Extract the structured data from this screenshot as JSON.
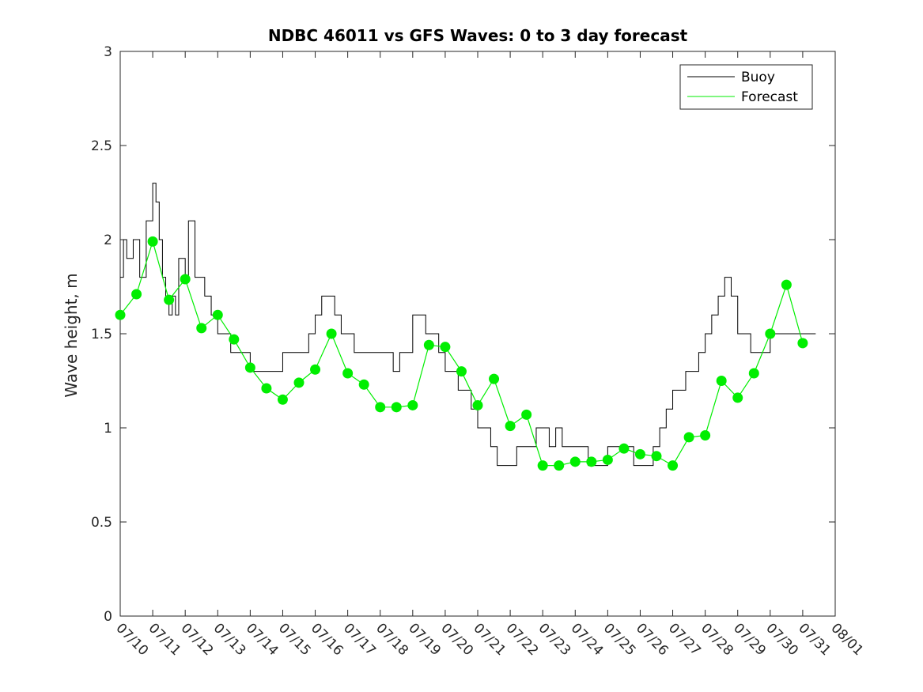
{
  "chart_data": {
    "type": "line",
    "title": "NDBC 46011 vs GFS Waves: 0 to 3 day forecast",
    "xlabel": "",
    "ylabel": "Wave height, m",
    "ylim": [
      0,
      3
    ],
    "yticks": [
      "0",
      "0.5",
      "1",
      "1.5",
      "2",
      "2.5",
      "3"
    ],
    "xlim": [
      "2023-07-10",
      "2023-08-01"
    ],
    "xticks": [
      "07/10",
      "07/11",
      "07/12",
      "07/13",
      "07/14",
      "07/15",
      "07/16",
      "07/17",
      "07/18",
      "07/19",
      "07/20",
      "07/21",
      "07/22",
      "07/23",
      "07/24",
      "07/25",
      "07/26",
      "07/27",
      "07/28",
      "07/29",
      "07/30",
      "07/31",
      "08/01"
    ],
    "grid": false,
    "legend": {
      "placement": "top-right",
      "entries": [
        "Buoy",
        "Forecast"
      ]
    },
    "colors": {
      "buoy": "#000000",
      "forecast": "#00ee00"
    },
    "series": [
      {
        "name": "Buoy",
        "style": "stepped line",
        "x_days": [
          0.0,
          0.1,
          0.2,
          0.4,
          0.6,
          0.8,
          1.0,
          1.1,
          1.2,
          1.3,
          1.4,
          1.5,
          1.6,
          1.7,
          1.8,
          2.0,
          2.1,
          2.3,
          2.5,
          2.6,
          2.8,
          3.0,
          3.2,
          3.4,
          3.6,
          3.8,
          4.0,
          4.2,
          4.4,
          4.6,
          4.8,
          5.0,
          5.2,
          5.4,
          5.6,
          5.8,
          6.0,
          6.2,
          6.4,
          6.6,
          6.8,
          7.0,
          7.2,
          7.4,
          7.6,
          7.8,
          8.0,
          8.2,
          8.4,
          8.6,
          8.8,
          9.0,
          9.2,
          9.4,
          9.6,
          9.8,
          10.0,
          10.2,
          10.4,
          10.6,
          10.8,
          11.0,
          11.2,
          11.4,
          11.6,
          11.8,
          12.0,
          12.2,
          12.4,
          12.6,
          12.8,
          13.0,
          13.2,
          13.4,
          13.6,
          13.8,
          14.0,
          14.2,
          14.4,
          14.6,
          14.8,
          15.0,
          15.2,
          15.4,
          15.6,
          15.8,
          16.0,
          16.2,
          16.4,
          16.6,
          16.8,
          17.0,
          17.2,
          17.4,
          17.6,
          17.8,
          18.0,
          18.2,
          18.4,
          18.6,
          18.8,
          19.0,
          19.2,
          19.4,
          19.6,
          19.8,
          20.0,
          20.2,
          20.4,
          20.6,
          20.8,
          21.0,
          21.2,
          21.4
        ],
        "values": [
          1.8,
          2.0,
          1.9,
          2.0,
          1.8,
          2.1,
          2.3,
          2.2,
          2.0,
          1.8,
          1.7,
          1.6,
          1.7,
          1.6,
          1.9,
          1.8,
          2.1,
          1.8,
          1.8,
          1.7,
          1.6,
          1.5,
          1.5,
          1.4,
          1.4,
          1.4,
          1.3,
          1.3,
          1.3,
          1.3,
          1.3,
          1.4,
          1.4,
          1.4,
          1.4,
          1.5,
          1.6,
          1.7,
          1.7,
          1.6,
          1.5,
          1.5,
          1.4,
          1.4,
          1.4,
          1.4,
          1.4,
          1.4,
          1.3,
          1.4,
          1.4,
          1.6,
          1.6,
          1.5,
          1.5,
          1.4,
          1.3,
          1.3,
          1.2,
          1.2,
          1.1,
          1.0,
          1.0,
          0.9,
          0.8,
          0.8,
          0.8,
          0.9,
          0.9,
          0.9,
          1.0,
          1.0,
          0.9,
          1.0,
          0.9,
          0.9,
          0.9,
          0.9,
          0.8,
          0.8,
          0.8,
          0.9,
          0.9,
          0.9,
          0.9,
          0.8,
          0.8,
          0.8,
          0.9,
          1.0,
          1.1,
          1.2,
          1.2,
          1.3,
          1.3,
          1.4,
          1.5,
          1.6,
          1.7,
          1.8,
          1.7,
          1.5,
          1.5,
          1.4,
          1.4,
          1.4,
          1.5,
          1.5,
          1.5,
          1.5,
          1.5,
          1.5,
          1.5,
          1.5
        ]
      },
      {
        "name": "Forecast",
        "style": "lines with dot markers (analysis)",
        "x_days": [
          0.0,
          0.5,
          1.0,
          1.5,
          2.0,
          2.5,
          3.0,
          3.5,
          4.0,
          4.5,
          5.0,
          5.5,
          6.0,
          6.5,
          7.0,
          7.5,
          8.0,
          8.5,
          9.0,
          9.5,
          10.0,
          10.5,
          11.0,
          11.5,
          12.0,
          12.5,
          13.0,
          13.5,
          14.0,
          14.5,
          15.0,
          15.5,
          16.0,
          16.5,
          17.0,
          17.5,
          18.0,
          18.5,
          19.0,
          19.5,
          20.0,
          20.5,
          21.0
        ],
        "values": [
          1.6,
          1.71,
          1.99,
          1.68,
          1.79,
          1.53,
          1.6,
          1.47,
          1.32,
          1.21,
          1.15,
          1.24,
          1.31,
          1.5,
          1.29,
          1.23,
          1.11,
          1.11,
          1.12,
          1.44,
          1.43,
          1.3,
          1.12,
          1.26,
          1.01,
          1.07,
          0.8,
          0.8,
          0.82,
          0.82,
          0.83,
          0.89,
          0.86,
          0.85,
          0.8,
          0.95,
          0.96,
          1.25,
          1.16,
          1.29,
          1.5,
          1.76,
          1.45
        ]
      }
    ]
  }
}
